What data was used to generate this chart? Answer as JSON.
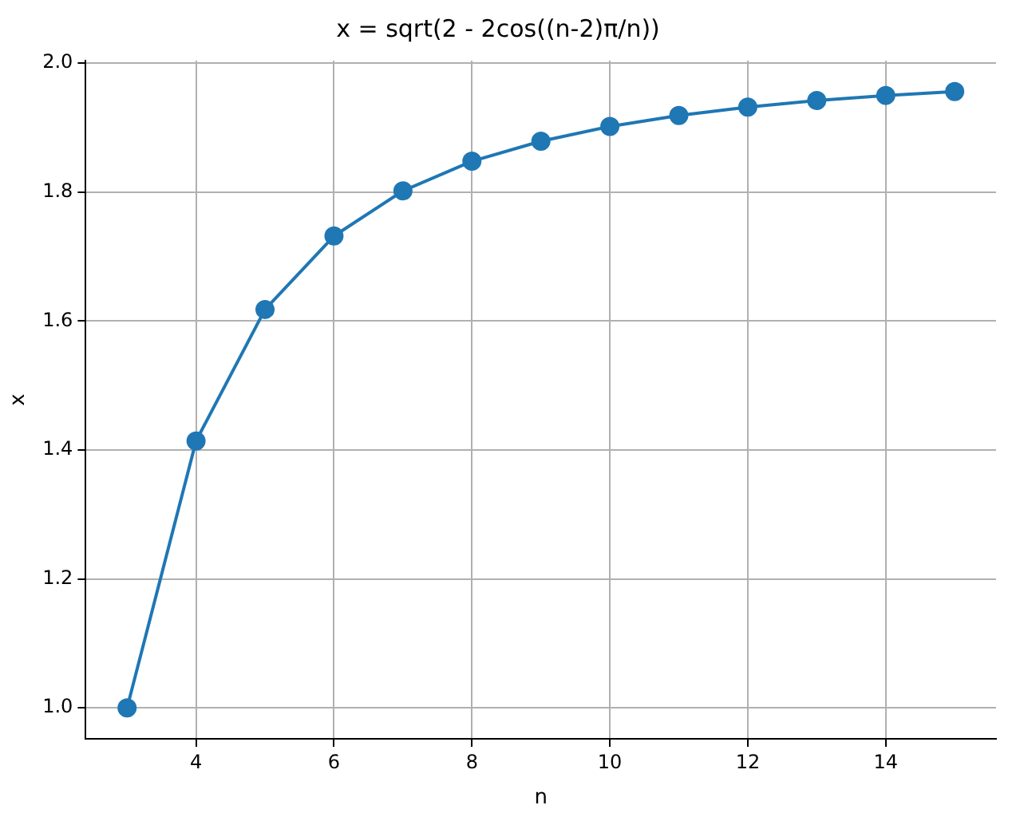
{
  "chart_data": {
    "type": "line",
    "title": "x = sqrt(2 - 2cos((n-2)π/n))",
    "xlabel": "n",
    "ylabel": "x",
    "x": [
      3,
      4,
      5,
      6,
      7,
      8,
      9,
      10,
      11,
      12,
      13,
      14,
      15
    ],
    "series": [
      {
        "color": "#1f77b4",
        "values": [
          1.0,
          1.414,
          1.618,
          1.732,
          1.802,
          1.848,
          1.879,
          1.902,
          1.919,
          1.932,
          1.942,
          1.95,
          1.956
        ]
      }
    ],
    "xlim": [
      2.4,
      15.6
    ],
    "xticks": [
      4,
      6,
      8,
      10,
      12,
      14
    ],
    "ylim": [
      0.952,
      2.004
    ],
    "yticks": [
      {
        "value": 1,
        "label": "1.0"
      },
      1.2,
      1.4,
      1.6,
      1.8,
      {
        "value": 2,
        "label": "2.0"
      }
    ],
    "grid": true,
    "marker": "circle",
    "line_style": "solid"
  }
}
